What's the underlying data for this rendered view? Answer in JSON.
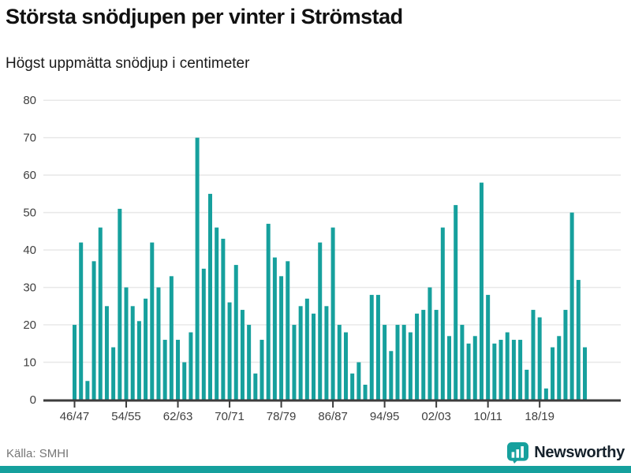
{
  "chart_data": {
    "type": "bar",
    "title": "Största snödjupen per vinter i Strömstad",
    "subtitle": "Högst uppmätta snödjup i centimeter",
    "unit": "centimeter",
    "start_winter": "1946/47",
    "end_winter": "2025/26",
    "values": [
      20,
      42,
      5,
      37,
      46,
      25,
      14,
      51,
      30,
      25,
      21,
      27,
      42,
      30,
      16,
      33,
      16,
      10,
      18,
      70,
      35,
      55,
      46,
      43,
      26,
      36,
      24,
      20,
      7,
      16,
      47,
      38,
      33,
      37,
      20,
      25,
      27,
      23,
      42,
      25,
      46,
      20,
      18,
      7,
      10,
      4,
      28,
      28,
      20,
      13,
      20,
      20,
      18,
      23,
      24,
      30,
      24,
      46,
      17,
      52,
      20,
      15,
      17,
      58,
      28,
      15,
      16,
      18,
      16,
      16,
      8,
      24,
      22,
      3,
      14,
      17,
      24,
      50,
      32,
      14
    ],
    "x_tick_labels": [
      "46/47",
      "54/55",
      "62/63",
      "70/71",
      "78/79",
      "86/87",
      "94/95",
      "02/03",
      "10/11",
      "18/19"
    ],
    "x_tick_every": 8,
    "y_ticks": [
      0,
      10,
      20,
      30,
      40,
      50,
      60,
      70,
      80
    ],
    "ylim": [
      0,
      80
    ],
    "grid": true,
    "legend": "none",
    "bar_color": "#16A09D"
  },
  "footer": {
    "source": "Källa: SMHI",
    "brand": "Newsworthy"
  },
  "colors": {
    "accent_teal": "#16A09D",
    "axis": "#3C3C3C",
    "gridline": "#E8E8E8",
    "tick_label": "#404040",
    "source_text": "#767676"
  }
}
